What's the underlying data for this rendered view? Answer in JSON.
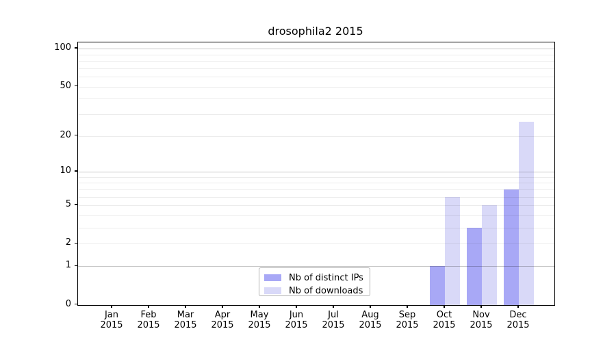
{
  "chart_data": {
    "type": "bar",
    "title": "drosophila2 2015",
    "scale": "log10(1+y)",
    "categories": [
      "Jan",
      "Feb",
      "Mar",
      "Apr",
      "May",
      "Jun",
      "Jul",
      "Aug",
      "Sep",
      "Oct",
      "Nov",
      "Dec"
    ],
    "year": "2015",
    "series": [
      {
        "name": "Nb of distinct IPs",
        "color": "#a8a8f6",
        "values": [
          0,
          0,
          0,
          0,
          0,
          0,
          0,
          0,
          0,
          1,
          3,
          7
        ]
      },
      {
        "name": "Nb of downloads",
        "color": "#d9d9f8",
        "values": [
          0,
          0,
          0,
          0,
          0,
          0,
          0,
          0,
          0,
          6,
          5,
          26
        ]
      }
    ],
    "y_ticks": [
      0,
      1,
      2,
      5,
      10,
      20,
      50,
      100
    ],
    "major_gridlines": [
      1,
      10,
      100
    ],
    "minor_gridlines": [
      2,
      3,
      4,
      5,
      6,
      7,
      8,
      9,
      20,
      30,
      40,
      50,
      60,
      70,
      80,
      90
    ],
    "ylim": [
      0,
      112
    ],
    "legend_position": "bottom-center-inside",
    "grid": "on"
  }
}
